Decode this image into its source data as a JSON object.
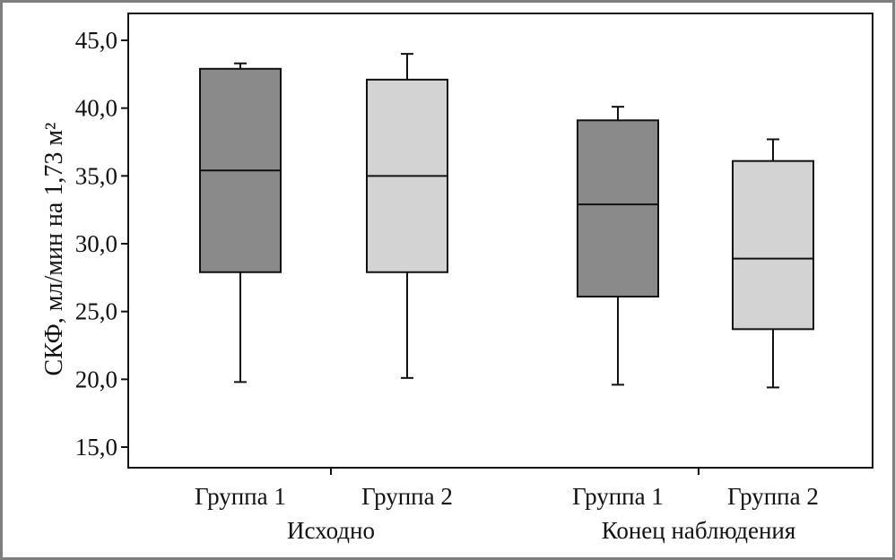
{
  "chart_data": {
    "type": "box",
    "ylabel": "СКФ, мл/мин на 1,73 м²",
    "ylim": [
      15,
      46.5
    ],
    "yticks": [
      "15,0",
      "20,0",
      "25,0",
      "30,0",
      "35,0",
      "40,0",
      "45,0"
    ],
    "ytick_values": [
      15,
      20,
      25,
      30,
      35,
      40,
      45
    ],
    "groups": [
      {
        "label": "Исходно",
        "categories": [
          {
            "label": "Группа 1",
            "series": "Группа 1",
            "min": 19.8,
            "q1": 27.9,
            "median": 35.4,
            "q3": 42.9,
            "max": 43.3
          },
          {
            "label": "Группа 2",
            "series": "Группа 2",
            "min": 20.1,
            "q1": 27.9,
            "median": 35.0,
            "q3": 42.1,
            "max": 44.0
          }
        ]
      },
      {
        "label": "Конец наблюдения",
        "categories": [
          {
            "label": "Группа 1",
            "series": "Группа 1",
            "min": 19.6,
            "q1": 26.1,
            "median": 32.9,
            "q3": 39.1,
            "max": 40.1
          },
          {
            "label": "Группа 2",
            "series": "Группа 2",
            "min": 19.4,
            "q1": 23.7,
            "median": 28.9,
            "q3": 36.1,
            "max": 37.7
          }
        ]
      }
    ],
    "colors": {
      "Группа 1": "#8a8a8a",
      "Группа 2": "#d3d3d3"
    },
    "grid": false
  }
}
